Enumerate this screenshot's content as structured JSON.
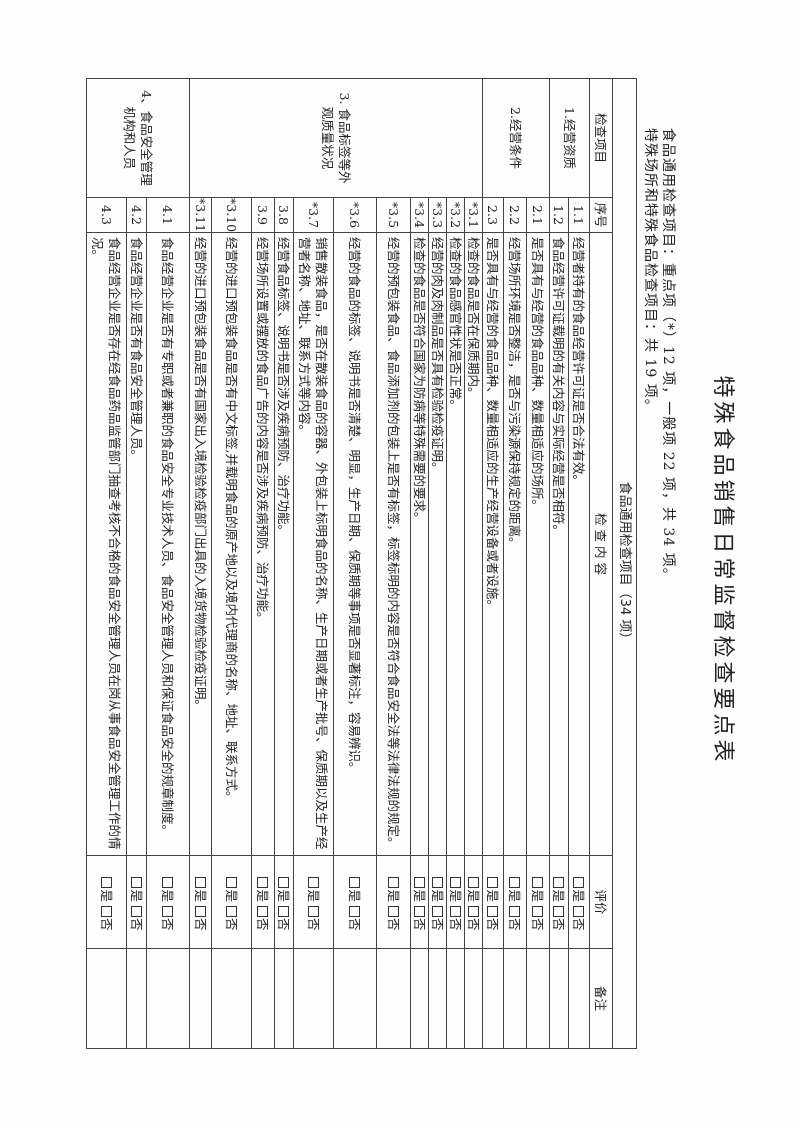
{
  "title": "特殊食品销售日常监督检查要点表",
  "subtitle_lines": [
    "食品通用检查项目：重点项（*）12 项，一般项 22 项，共 34 项。",
    "特殊场所和特殊食品检查项目：共 19 项。"
  ],
  "table": {
    "section_header": "食品通用检查项目（34 项）",
    "headers": {
      "item": "检查项目",
      "seq": "序号",
      "content": "检 查 内 容",
      "eval": "评价",
      "remark": "备注"
    },
    "eval_options": [
      "是",
      "否"
    ],
    "groups": [
      {
        "label": "1.经营资质",
        "start": 0,
        "span": 2
      },
      {
        "label": "2.经营条件",
        "start": 2,
        "span": 3
      },
      {
        "label": "3. 食品标签等外观质量状况",
        "start": 5,
        "span": 11
      },
      {
        "label": "4、食品安全管理机构和人员",
        "start": 16,
        "span": 3
      }
    ],
    "rows": [
      {
        "seq": "1.1",
        "content": "经营者持有的食品经营许可证是否合法有效。"
      },
      {
        "seq": "1.2",
        "content": "食品经营许可证载明的有关内容与实际经营是否相符。"
      },
      {
        "seq": "2.1",
        "content": "是否具有与经营的食品品种、数量相适应的场所。"
      },
      {
        "seq": "2.2",
        "content": "经营场所环境是否整洁，是否与污染源保持规定的距离。"
      },
      {
        "seq": "2.3",
        "content": "是否具有与经营的食品品种、数量相适应的生产经营设备或者设施。"
      },
      {
        "seq": "*3.1",
        "content": "检查的食品是否在保质期内。"
      },
      {
        "seq": "*3.2",
        "content": "检查的食品感官性状是否正常。"
      },
      {
        "seq": "*3.3",
        "content": "经营的肉及肉制品是否具有检验检疫证明。"
      },
      {
        "seq": "*3.4",
        "content": "检查的食品是否符合国家为防病等特殊需要的要求。"
      },
      {
        "seq": "*3.5",
        "content": "经营的预包装食品、食品添加剂的包装上是否有标签，标签标明的内容是否符合食品安全法等法律法规的规定。"
      },
      {
        "seq": "*3.6",
        "content": "经营的食品的标签、说明书是否清楚、明显，生产日期、保质期等事项是否显著标注，容易辨识。"
      },
      {
        "seq": "*3.7",
        "content": "销售散装食品，是否在散装食品的容器、外包装上标明食品的名称、生产日期或者生产批号、保质期以及生产经营者名称、地址、联系方式等内容。"
      },
      {
        "seq": "3.8",
        "content": "经营食品标签、说明书是否涉及疾病预防、治疗功能。"
      },
      {
        "seq": "3.9",
        "content": "经营场所设置或摆放的食品广告的内容是否涉及疾病预防、治疗功能。"
      },
      {
        "seq": "*3.10",
        "content": "经营的进口预包装食品是否有中文标签,并载明食品的原产地以及境内代理商的名称、地址、联系方式。"
      },
      {
        "seq": "*3.11",
        "content": "经营的进口预包装食品是否有国家出入境检验检疫部门出具的入境货物检验检疫证明。"
      },
      {
        "seq": "4.1",
        "content": "食品经营企业是否有专职或者兼职的食品安全专业技术人员、食品安全管理人员和保证食品安全的规章制度。"
      },
      {
        "seq": "4.2",
        "content": "食品经营企业是否有食品安全管理人员。"
      },
      {
        "seq": "4.3",
        "content": "食品经营企业是否存在经食品药品监管部门抽查考核不合格的食品安全管理人员在岗从事食品安全管理工作的情况。"
      }
    ]
  }
}
